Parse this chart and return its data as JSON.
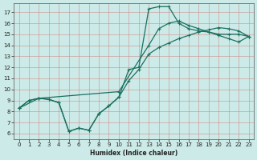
{
  "xlabel": "Humidex (Indice chaleur)",
  "bg_color": "#cceae7",
  "grid_color": "#d08080",
  "line_color": "#1a7060",
  "xlim": [
    -0.5,
    23.5
  ],
  "ylim": [
    5.5,
    17.8
  ],
  "xticks": [
    0,
    1,
    2,
    3,
    4,
    5,
    6,
    7,
    8,
    9,
    10,
    11,
    12,
    13,
    14,
    15,
    16,
    17,
    18,
    19,
    20,
    21,
    22,
    23
  ],
  "yticks": [
    6,
    7,
    8,
    9,
    10,
    11,
    12,
    13,
    14,
    15,
    16,
    17
  ],
  "line1_x": [
    0,
    1,
    2,
    3,
    4,
    5,
    6,
    7,
    8,
    9,
    10,
    11,
    12,
    13,
    14,
    15,
    16,
    17,
    18,
    19,
    20,
    21,
    22,
    23
  ],
  "line1_y": [
    8.3,
    9.0,
    9.2,
    9.1,
    8.8,
    6.2,
    6.5,
    6.3,
    7.8,
    8.5,
    9.3,
    11.8,
    12.0,
    17.3,
    17.5,
    17.5,
    16.0,
    15.5,
    15.3,
    15.2,
    15.0,
    15.0,
    15.0,
    14.8
  ],
  "line2_x": [
    0,
    1,
    2,
    3,
    4,
    5,
    6,
    7,
    8,
    9,
    10,
    11,
    12,
    13,
    14,
    15,
    16,
    17,
    18,
    19,
    20,
    21,
    22,
    23
  ],
  "line2_y": [
    8.3,
    9.0,
    9.2,
    9.1,
    8.8,
    6.2,
    6.5,
    6.3,
    7.8,
    8.5,
    9.3,
    10.8,
    11.8,
    13.2,
    13.8,
    14.2,
    14.6,
    14.9,
    15.2,
    15.4,
    15.6,
    15.5,
    15.3,
    14.8
  ],
  "line3_x": [
    0,
    2,
    10,
    13,
    14,
    15,
    16,
    17,
    18,
    19,
    20,
    21,
    22,
    23
  ],
  "line3_y": [
    8.3,
    9.2,
    9.8,
    14.0,
    15.5,
    16.0,
    16.2,
    15.8,
    15.5,
    15.2,
    14.9,
    14.6,
    14.3,
    14.8
  ]
}
